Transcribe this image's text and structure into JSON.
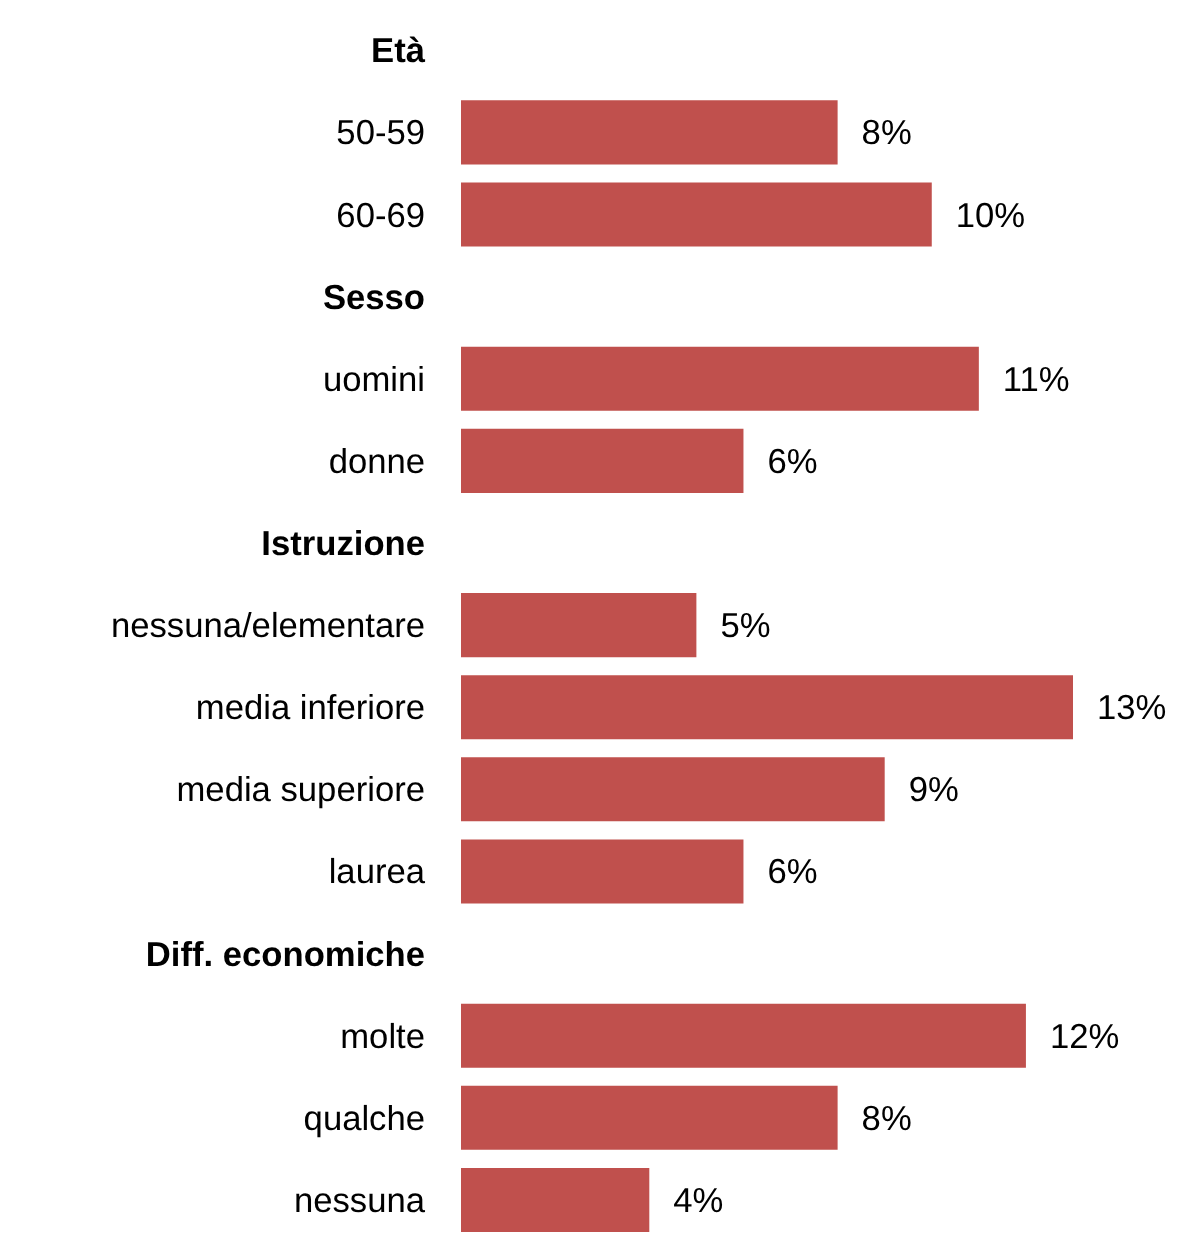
{
  "chart_data": {
    "type": "bar",
    "orientation": "horizontal",
    "categories": [
      "Età",
      "50-59",
      "60-69",
      "Sesso",
      "uomini",
      "donne",
      "Istruzione",
      "nessuna/elementare",
      "media inferiore",
      "media superiore",
      "laurea",
      "Diff. economiche",
      "molte",
      "qualche",
      "nessuna"
    ],
    "values": [
      null,
      8,
      10,
      null,
      11,
      6,
      null,
      5,
      13,
      9,
      6,
      null,
      12,
      8,
      4
    ],
    "color": "#c0504d",
    "data_labels": true,
    "value_labels": [
      null,
      "8%",
      "10%",
      null,
      "11%",
      "6%",
      null,
      "5%",
      "13%",
      "9%",
      "6%",
      null,
      "12%",
      "8%",
      "4%"
    ]
  }
}
